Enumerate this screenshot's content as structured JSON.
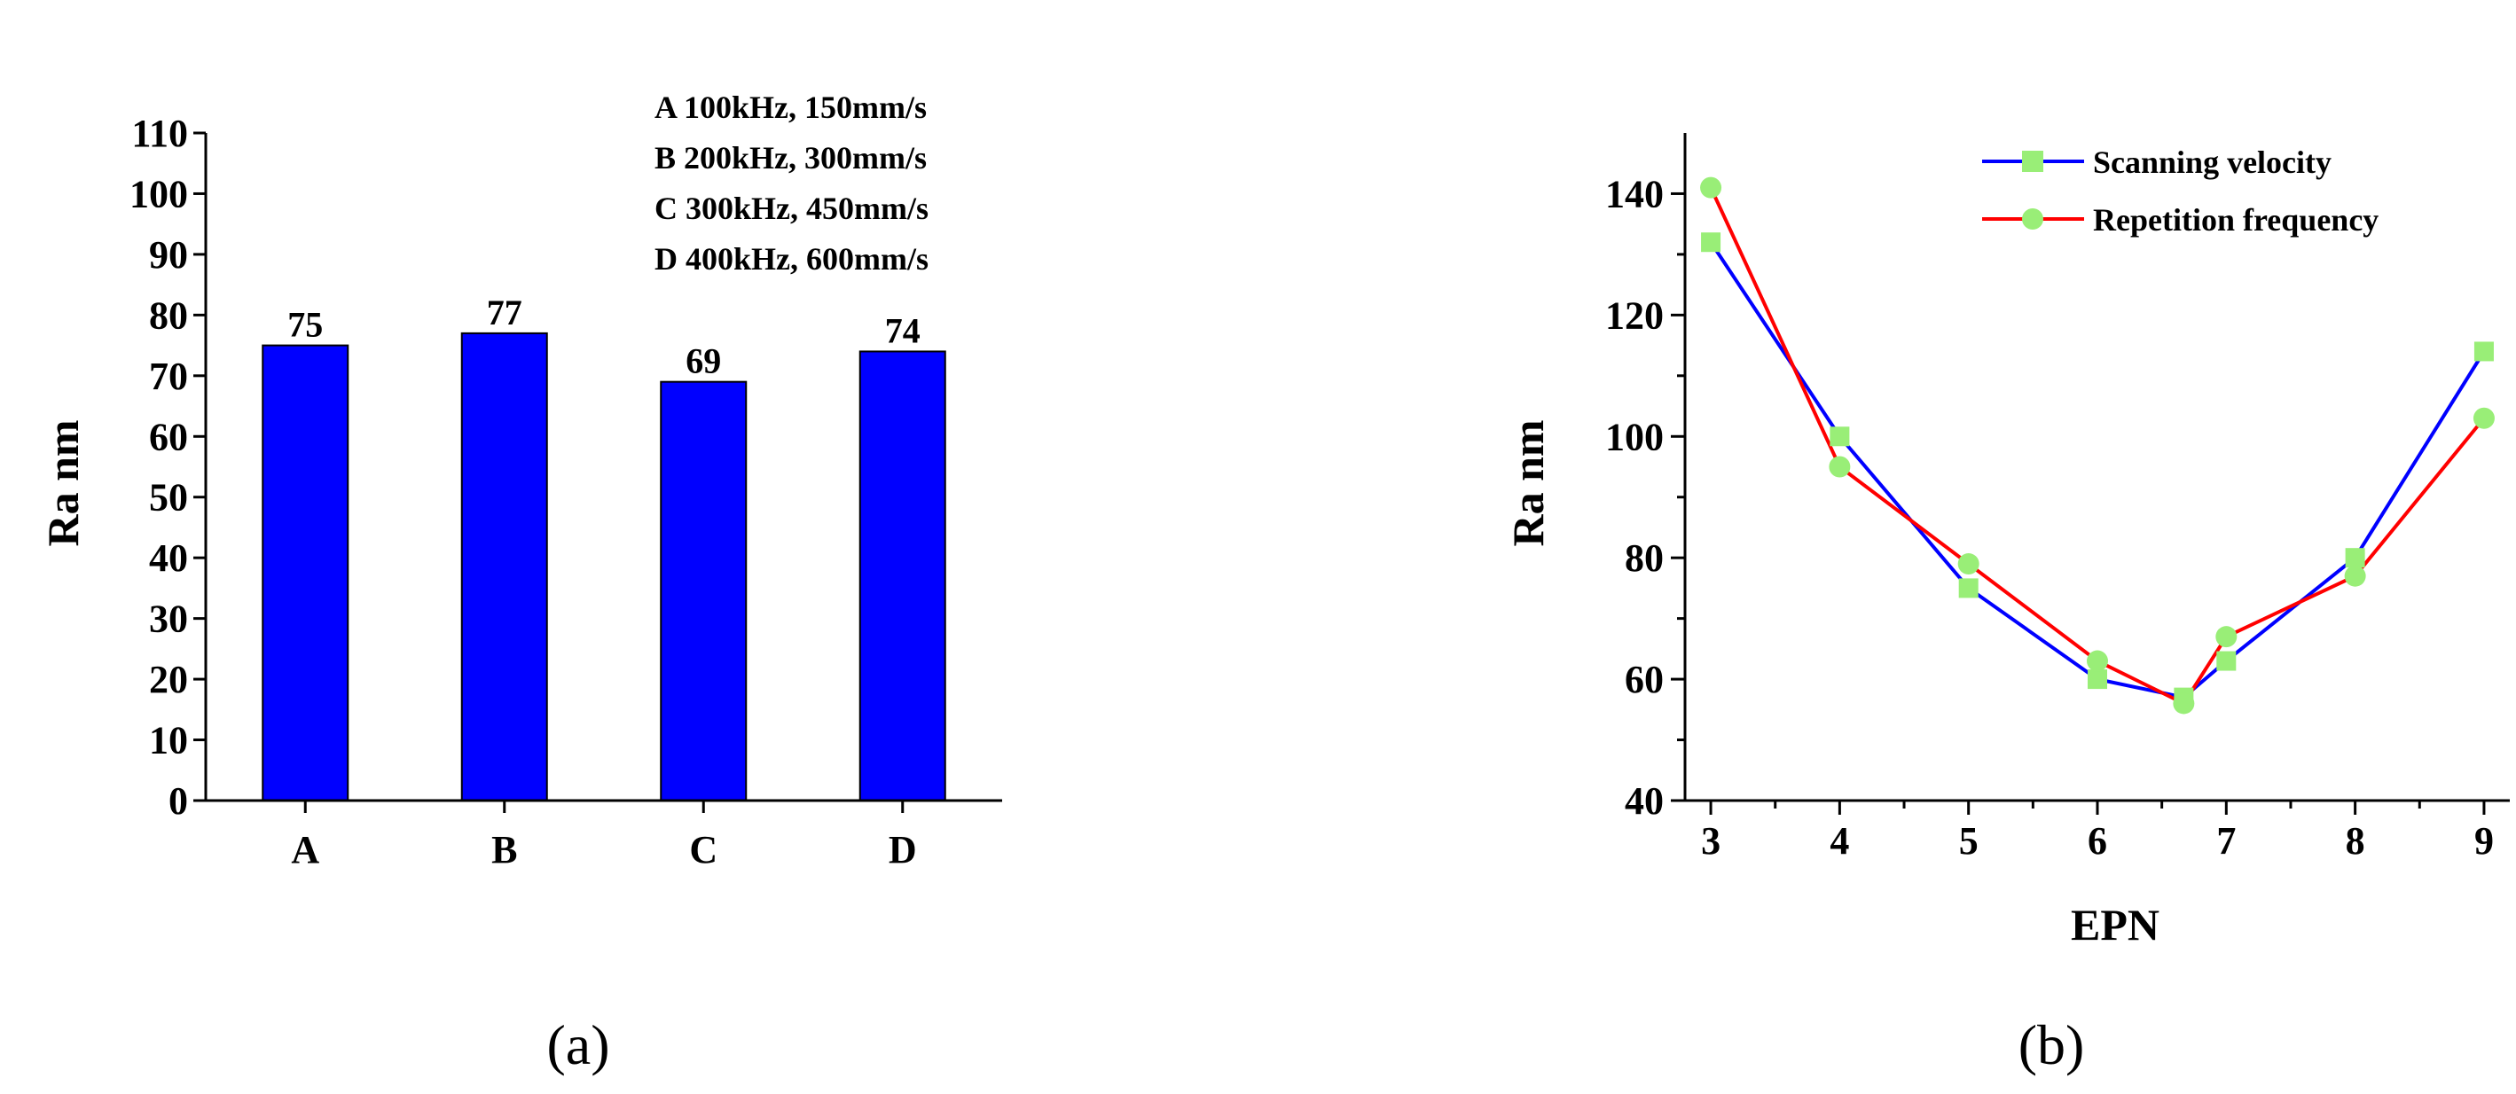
{
  "panels": {
    "a_label": "(a)",
    "b_label": "(b)"
  },
  "chart_data": [
    {
      "type": "bar",
      "categories": [
        "A",
        "B",
        "C",
        "D"
      ],
      "values": [
        75,
        77,
        69,
        74
      ],
      "data_labels": [
        "75",
        "77",
        "69",
        "74"
      ],
      "ylabel": "Ra nm",
      "xlabel": "",
      "ylim": [
        0,
        110
      ],
      "yticks": [
        0,
        10,
        20,
        30,
        40,
        50,
        60,
        70,
        80,
        90,
        100,
        110
      ],
      "bar_color": "#0000ff",
      "legend_text": [
        "A 100kHz, 150mm/s",
        "B 200kHz, 300mm/s",
        "C 300kHz, 450mm/s",
        "D 400kHz, 600mm/s"
      ],
      "legend_position": "top-right",
      "grid": false
    },
    {
      "type": "line",
      "xlabel": "EPN",
      "ylabel": "Ra nm",
      "xlim": [
        2.8,
        9.2
      ],
      "ylim": [
        40,
        150
      ],
      "xticks": [
        3,
        4,
        5,
        6,
        7,
        8,
        9
      ],
      "yticks": [
        40,
        60,
        80,
        100,
        120,
        140
      ],
      "marker_color": "#99ee77",
      "series": [
        {
          "name": "Scanning velocity",
          "color": "#0000ff",
          "marker": "square",
          "x": [
            3,
            4,
            5,
            6,
            6.67,
            7,
            8,
            9
          ],
          "y": [
            132,
            100,
            75,
            60,
            57,
            63,
            80,
            114
          ]
        },
        {
          "name": "Repetition frequency",
          "color": "#ff0000",
          "marker": "circle",
          "x": [
            3,
            4,
            5,
            6,
            6.67,
            7,
            8,
            9
          ],
          "y": [
            141,
            95,
            79,
            63,
            56,
            67,
            77,
            103
          ]
        }
      ],
      "legend_position": "top-right",
      "grid": false
    }
  ]
}
